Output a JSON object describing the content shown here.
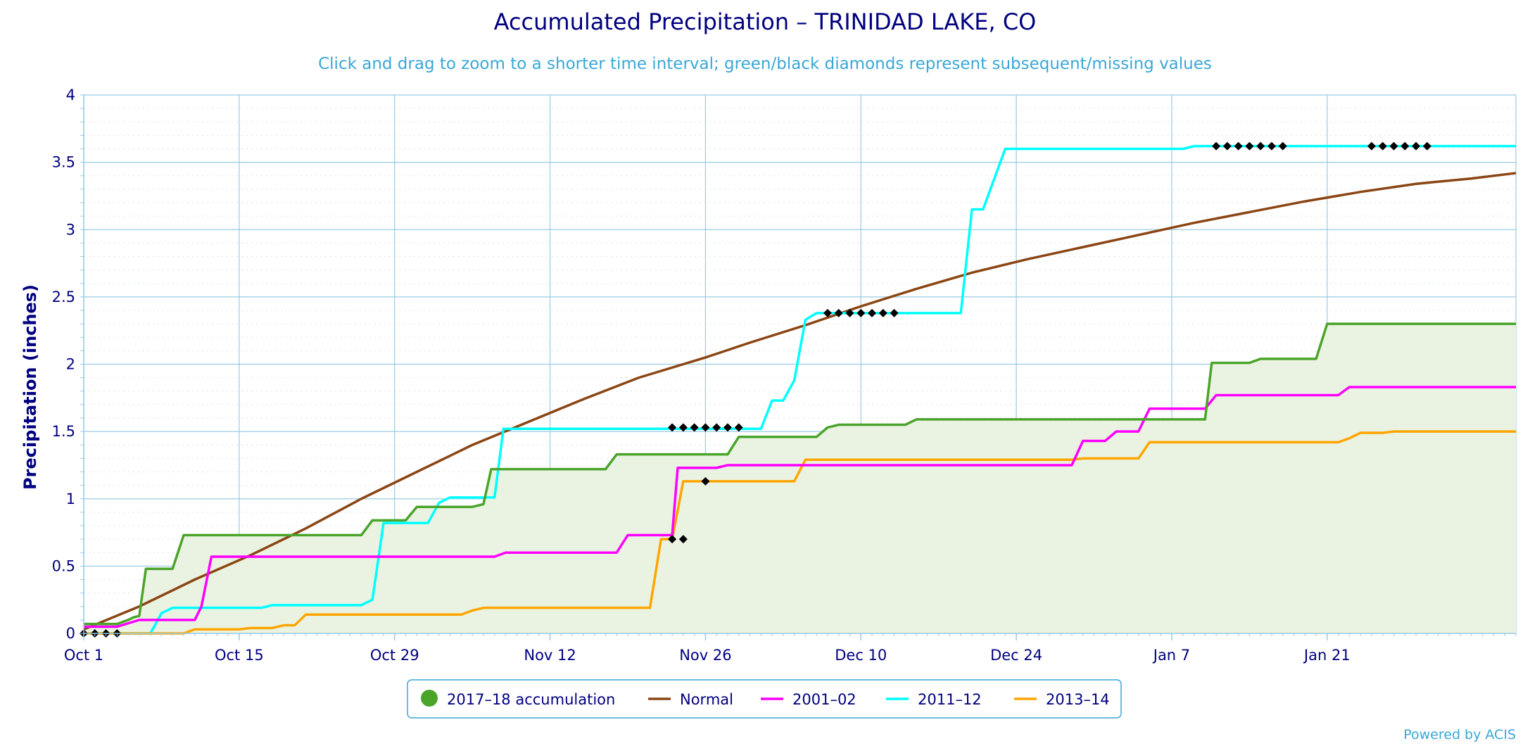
{
  "colors": {
    "title": "#000080",
    "subtitle": "#3aa7d6",
    "axis_text": "#000080",
    "grid": "#99cbe3",
    "minor_grid": "#d6e2ea",
    "plot_border": "#99cbe3",
    "fill": "#eaf3e2",
    "legend_border": "#3aa7d6",
    "credit": "#3aa7d6"
  },
  "credit": "Powered by ACIS",
  "chart_data": {
    "type": "line",
    "title": "Accumulated Precipitation – TRINIDAD LAKE, CO",
    "subtitle": "Click and drag to zoom to a shorter time interval; green/black diamonds represent subsequent/missing values",
    "ylabel": "Precipitation (inches)",
    "xlabel": "",
    "x_start": "Oct 1",
    "x_end": "Feb 1",
    "xlim_days": [
      0,
      129
    ],
    "ylim": [
      0,
      4
    ],
    "y_ticks": [
      0,
      0.5,
      1,
      1.5,
      2,
      2.5,
      3,
      3.5,
      4
    ],
    "y_tick_labels": [
      "0",
      "0.5",
      "1",
      "1.5",
      "2",
      "2.5",
      "3",
      "3.5",
      "4"
    ],
    "x_ticks": [
      {
        "day": 0,
        "label": "Oct 1"
      },
      {
        "day": 14,
        "label": "Oct 15"
      },
      {
        "day": 28,
        "label": "Oct 29"
      },
      {
        "day": 42,
        "label": "Nov 12"
      },
      {
        "day": 56,
        "label": "Nov 26"
      },
      {
        "day": 70,
        "label": "Dec 10"
      },
      {
        "day": 84,
        "label": "Dec 24"
      },
      {
        "day": 98,
        "label": "Jan 7"
      },
      {
        "day": 112,
        "label": "Jan 21"
      }
    ],
    "grid": true,
    "legend_position": "bottom-center",
    "legend": [
      {
        "label": "2017–18 accumulation",
        "color": "#4aa42a",
        "marker": "circle"
      },
      {
        "label": "Normal",
        "color": "#8b4513",
        "marker": "line"
      },
      {
        "label": "2001–02",
        "color": "#ff00ff",
        "marker": "line"
      },
      {
        "label": "2011–12",
        "color": "#00ffff",
        "marker": "line"
      },
      {
        "label": "2013–14",
        "color": "#ffa500",
        "marker": "line"
      }
    ],
    "series": [
      {
        "name": "2017–18 accumulation",
        "color": "#4aa42a",
        "fill": true,
        "points": [
          [
            0,
            0.07
          ],
          [
            3,
            0.07
          ],
          [
            4,
            0.1
          ],
          [
            4.5,
            0.12
          ],
          [
            5,
            0.13
          ],
          [
            5.6,
            0.48
          ],
          [
            8,
            0.48
          ],
          [
            9,
            0.73
          ],
          [
            25,
            0.73
          ],
          [
            26,
            0.84
          ],
          [
            29,
            0.84
          ],
          [
            30,
            0.94
          ],
          [
            35,
            0.94
          ],
          [
            36,
            0.96
          ],
          [
            36.7,
            1.22
          ],
          [
            47,
            1.22
          ],
          [
            48,
            1.33
          ],
          [
            58,
            1.33
          ],
          [
            59,
            1.46
          ],
          [
            66,
            1.46
          ],
          [
            67,
            1.53
          ],
          [
            68,
            1.55
          ],
          [
            74,
            1.55
          ],
          [
            75,
            1.59
          ],
          [
            101,
            1.59
          ],
          [
            101.6,
            2.01
          ],
          [
            105,
            2.01
          ],
          [
            106,
            2.04
          ],
          [
            111,
            2.04
          ],
          [
            112,
            2.3
          ],
          [
            129,
            2.3
          ]
        ]
      },
      {
        "name": "Normal",
        "color": "#8b4513",
        "fill": false,
        "points": [
          [
            0,
            0.03
          ],
          [
            5,
            0.2
          ],
          [
            10,
            0.4
          ],
          [
            15,
            0.58
          ],
          [
            20,
            0.78
          ],
          [
            25,
            1.0
          ],
          [
            30,
            1.2
          ],
          [
            35,
            1.4
          ],
          [
            40,
            1.57
          ],
          [
            45,
            1.74
          ],
          [
            50,
            1.9
          ],
          [
            56,
            2.05
          ],
          [
            60,
            2.16
          ],
          [
            65,
            2.29
          ],
          [
            70,
            2.43
          ],
          [
            75,
            2.56
          ],
          [
            80,
            2.68
          ],
          [
            85,
            2.78
          ],
          [
            90,
            2.87
          ],
          [
            95,
            2.96
          ],
          [
            100,
            3.05
          ],
          [
            105,
            3.13
          ],
          [
            110,
            3.21
          ],
          [
            115,
            3.28
          ],
          [
            120,
            3.34
          ],
          [
            125,
            3.38
          ],
          [
            129,
            3.42
          ]
        ]
      },
      {
        "name": "2001–02",
        "color": "#ff00ff",
        "fill": false,
        "points": [
          [
            0,
            0.05
          ],
          [
            3,
            0.05
          ],
          [
            5,
            0.1
          ],
          [
            10,
            0.1
          ],
          [
            10.6,
            0.2
          ],
          [
            11.5,
            0.57
          ],
          [
            37,
            0.57
          ],
          [
            38,
            0.6
          ],
          [
            48,
            0.6
          ],
          [
            49,
            0.73
          ],
          [
            53,
            0.73
          ],
          [
            53.5,
            1.23
          ],
          [
            57,
            1.23
          ],
          [
            58,
            1.25
          ],
          [
            89,
            1.25
          ],
          [
            90,
            1.43
          ],
          [
            92,
            1.43
          ],
          [
            93,
            1.5
          ],
          [
            95,
            1.5
          ],
          [
            96,
            1.67
          ],
          [
            101,
            1.67
          ],
          [
            102,
            1.77
          ],
          [
            113,
            1.77
          ],
          [
            114,
            1.83
          ],
          [
            129,
            1.83
          ]
        ]
      },
      {
        "name": "2011–12",
        "color": "#00ffff",
        "fill": false,
        "points": [
          [
            0,
            0
          ],
          [
            6,
            0
          ],
          [
            7,
            0.15
          ],
          [
            8,
            0.19
          ],
          [
            16,
            0.19
          ],
          [
            17,
            0.21
          ],
          [
            25,
            0.21
          ],
          [
            26,
            0.25
          ],
          [
            27,
            0.82
          ],
          [
            31,
            0.82
          ],
          [
            32,
            0.97
          ],
          [
            33,
            1.01
          ],
          [
            37,
            1.01
          ],
          [
            37.8,
            1.52
          ],
          [
            61,
            1.52
          ],
          [
            62,
            1.73
          ],
          [
            63,
            1.73
          ],
          [
            64,
            1.88
          ],
          [
            65,
            2.33
          ],
          [
            66,
            2.38
          ],
          [
            79,
            2.38
          ],
          [
            80,
            3.15
          ],
          [
            81,
            3.15
          ],
          [
            83,
            3.6
          ],
          [
            99,
            3.6
          ],
          [
            100,
            3.62
          ],
          [
            129,
            3.62
          ]
        ]
      },
      {
        "name": "2013–14",
        "color": "#ffa500",
        "fill": false,
        "points": [
          [
            0,
            0
          ],
          [
            9,
            0
          ],
          [
            10,
            0.03
          ],
          [
            14,
            0.03
          ],
          [
            15,
            0.04
          ],
          [
            17,
            0.04
          ],
          [
            18,
            0.06
          ],
          [
            19,
            0.06
          ],
          [
            20,
            0.14
          ],
          [
            34,
            0.14
          ],
          [
            35,
            0.17
          ],
          [
            36,
            0.19
          ],
          [
            51,
            0.19
          ],
          [
            52,
            0.7
          ],
          [
            53,
            0.7
          ],
          [
            54,
            1.13
          ],
          [
            64,
            1.13
          ],
          [
            65,
            1.29
          ],
          [
            89,
            1.29
          ],
          [
            90,
            1.3
          ],
          [
            95,
            1.3
          ],
          [
            96,
            1.42
          ],
          [
            113,
            1.42
          ],
          [
            114,
            1.45
          ],
          [
            115,
            1.49
          ],
          [
            117,
            1.49
          ],
          [
            118,
            1.5
          ],
          [
            129,
            1.5
          ]
        ]
      }
    ],
    "missing_markers": [
      {
        "day": 0,
        "y": 0.0
      },
      {
        "day": 1,
        "y": 0.0
      },
      {
        "day": 2,
        "y": 0.0
      },
      {
        "day": 3,
        "y": 0.0
      },
      {
        "day": 53,
        "y": 0.7
      },
      {
        "day": 54,
        "y": 0.7
      },
      {
        "day": 56,
        "y": 1.13
      },
      {
        "day": 53,
        "y": 1.53
      },
      {
        "day": 54,
        "y": 1.53
      },
      {
        "day": 55,
        "y": 1.53
      },
      {
        "day": 56,
        "y": 1.53
      },
      {
        "day": 57,
        "y": 1.53
      },
      {
        "day": 58,
        "y": 1.53
      },
      {
        "day": 59,
        "y": 1.53
      },
      {
        "day": 67,
        "y": 2.38
      },
      {
        "day": 68,
        "y": 2.38
      },
      {
        "day": 69,
        "y": 2.38
      },
      {
        "day": 70,
        "y": 2.38
      },
      {
        "day": 71,
        "y": 2.38
      },
      {
        "day": 72,
        "y": 2.38
      },
      {
        "day": 73,
        "y": 2.38
      },
      {
        "day": 102,
        "y": 3.62
      },
      {
        "day": 103,
        "y": 3.62
      },
      {
        "day": 104,
        "y": 3.62
      },
      {
        "day": 105,
        "y": 3.62
      },
      {
        "day": 106,
        "y": 3.62
      },
      {
        "day": 107,
        "y": 3.62
      },
      {
        "day": 108,
        "y": 3.62
      },
      {
        "day": 116,
        "y": 3.62
      },
      {
        "day": 117,
        "y": 3.62
      },
      {
        "day": 118,
        "y": 3.62
      },
      {
        "day": 119,
        "y": 3.62
      },
      {
        "day": 120,
        "y": 3.62
      },
      {
        "day": 121,
        "y": 3.62
      }
    ]
  }
}
